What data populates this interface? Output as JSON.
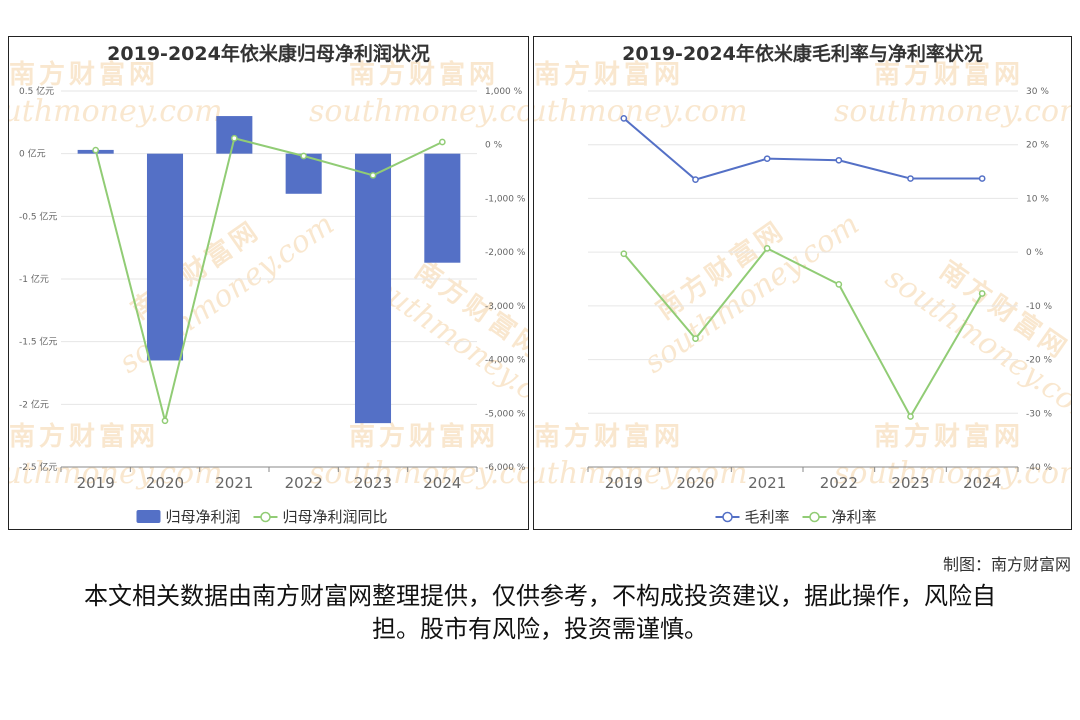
{
  "charts": [
    {
      "title": "2019-2024年依米康归母净利润状况",
      "type": "bar+line",
      "categories": [
        "2019",
        "2020",
        "2021",
        "2022",
        "2023",
        "2024"
      ],
      "left_axis": {
        "ticks": [
          "0.5 亿元",
          "0 亿元",
          "-0.5 亿元",
          "-1 亿元",
          "-1.5 亿元",
          "-2 亿元",
          "-2.5 亿元"
        ],
        "min": -2.5,
        "max": 0.5
      },
      "right_axis": {
        "ticks": [
          "1,000 %",
          "0 %",
          "-1,000 %",
          "-2,000 %",
          "-3,000 %",
          "-4,000 %",
          "-5,000 %",
          "-6,000 %"
        ],
        "min": -6000,
        "max": 1000
      },
      "series": [
        {
          "name": "归母净利润",
          "kind": "bar",
          "axis": "left",
          "color": "#5470c6",
          "values": [
            0.03,
            -1.65,
            0.3,
            -0.32,
            -2.15,
            -0.87
          ]
        },
        {
          "name": "归母净利润同比",
          "kind": "line",
          "axis": "right",
          "color": "#91cc75",
          "values": [
            -100,
            -5140,
            120,
            -210,
            -570,
            50
          ]
        }
      ]
    },
    {
      "title": "2019-2024年依米康毛利率与净利率状况",
      "type": "line",
      "categories": [
        "2019",
        "2020",
        "2021",
        "2022",
        "2023",
        "2024"
      ],
      "right_axis": {
        "ticks": [
          "30 %",
          "20 %",
          "10 %",
          "0 %",
          "-10 %",
          "-20 %",
          "-30 %",
          "-40 %"
        ],
        "min": -40,
        "max": 30
      },
      "series": [
        {
          "name": "毛利率",
          "kind": "line",
          "axis": "right",
          "color": "#5470c6",
          "values": [
            24.9,
            13.5,
            17.4,
            17.1,
            13.7,
            13.7
          ]
        },
        {
          "name": "净利率",
          "kind": "line",
          "axis": "right",
          "color": "#91cc75",
          "values": [
            -0.3,
            -16.1,
            0.7,
            -6.0,
            -30.6,
            -7.7
          ]
        }
      ]
    }
  ],
  "footer": {
    "credit": "制图：南方财富网",
    "disclaimer": "本文相关数据由南方财富网整理提供，仅供参考，不构成投资建议，据此操作，风险自担。股市有风险，投资需谨慎。"
  },
  "watermark": {
    "cn": "南方财富网",
    "en": "southmoney.com",
    "color": "#f5d5a8"
  }
}
